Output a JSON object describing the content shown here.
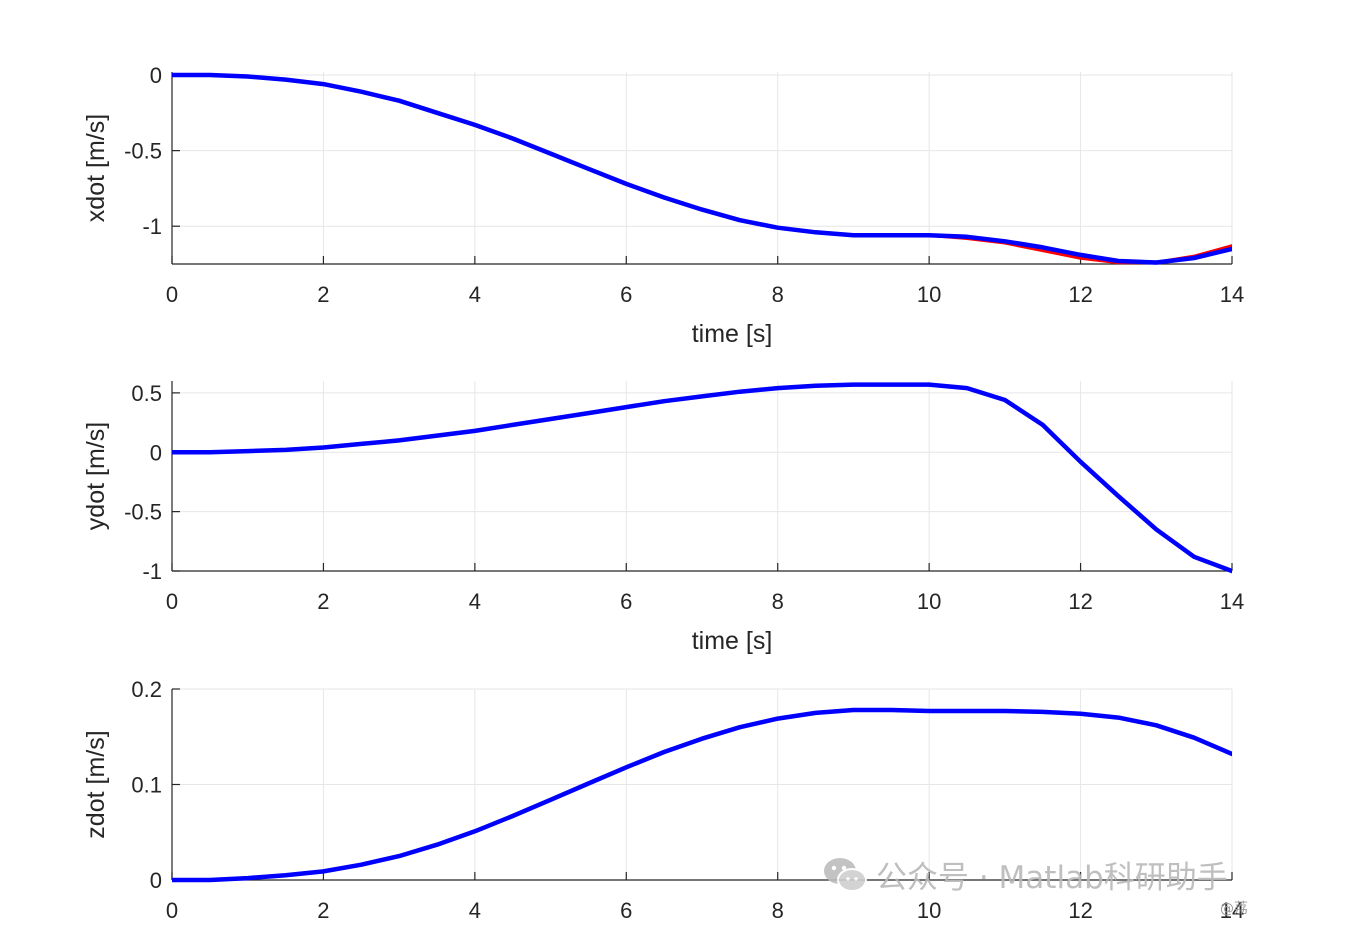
{
  "chart_data": [
    {
      "type": "line",
      "xlabel": "time [s]",
      "ylabel": "xdot [m/s]",
      "xlim": [
        0,
        14
      ],
      "ylim": [
        -1.25,
        0.02
      ],
      "xticks": [
        "0",
        "2",
        "4",
        "6",
        "8",
        "10",
        "12",
        "14"
      ],
      "yticks": [
        "0",
        "-0.5",
        "-1"
      ],
      "ytick_values": [
        0,
        -0.5,
        -1
      ],
      "show_xlabel": true,
      "grid": true,
      "x": [
        0,
        0.5,
        1,
        1.5,
        2,
        2.5,
        3,
        3.5,
        4,
        4.5,
        5,
        5.5,
        6,
        6.5,
        7,
        7.5,
        8,
        8.5,
        9,
        9.5,
        10,
        10.5,
        11,
        11.5,
        12,
        12.5,
        13,
        13.5,
        14
      ],
      "series": [
        {
          "color": "#ff0000",
          "values": [
            0,
            0,
            -0.01,
            -0.03,
            -0.06,
            -0.11,
            -0.17,
            -0.25,
            -0.33,
            -0.42,
            -0.52,
            -0.62,
            -0.72,
            -0.81,
            -0.89,
            -0.96,
            -1.01,
            -1.04,
            -1.06,
            -1.06,
            -1.06,
            -1.08,
            -1.11,
            -1.16,
            -1.21,
            -1.24,
            -1.24,
            -1.2,
            -1.13
          ]
        },
        {
          "color": "#0000ff",
          "values": [
            0,
            0,
            -0.01,
            -0.03,
            -0.06,
            -0.11,
            -0.17,
            -0.25,
            -0.33,
            -0.42,
            -0.52,
            -0.62,
            -0.72,
            -0.81,
            -0.89,
            -0.96,
            -1.01,
            -1.04,
            -1.06,
            -1.06,
            -1.06,
            -1.07,
            -1.1,
            -1.14,
            -1.19,
            -1.23,
            -1.24,
            -1.21,
            -1.15
          ]
        }
      ]
    },
    {
      "type": "line",
      "xlabel": "time [s]",
      "ylabel": "ydot [m/s]",
      "xlim": [
        0,
        14
      ],
      "ylim": [
        -1,
        0.6
      ],
      "xticks": [
        "0",
        "2",
        "4",
        "6",
        "8",
        "10",
        "12",
        "14"
      ],
      "yticks": [
        "0.5",
        "0",
        "-0.5",
        "-1"
      ],
      "ytick_values": [
        0.5,
        0,
        -0.5,
        -1
      ],
      "show_xlabel": true,
      "grid": true,
      "x": [
        0,
        0.5,
        1,
        1.5,
        2,
        2.5,
        3,
        3.5,
        4,
        4.5,
        5,
        5.5,
        6,
        6.5,
        7,
        7.5,
        8,
        8.5,
        9,
        9.5,
        10,
        10.5,
        11,
        11.5,
        12,
        12.5,
        13,
        13.5,
        14
      ],
      "series": [
        {
          "color": "#ff0000",
          "values": [
            0,
            0,
            0.01,
            0.02,
            0.04,
            0.07,
            0.1,
            0.14,
            0.18,
            0.23,
            0.28,
            0.33,
            0.38,
            0.43,
            0.47,
            0.51,
            0.54,
            0.56,
            0.57,
            0.57,
            0.57,
            0.54,
            0.44,
            0.23,
            -0.08,
            -0.37,
            -0.65,
            -0.88,
            -1.0
          ]
        },
        {
          "color": "#0000ff",
          "values": [
            0,
            0,
            0.01,
            0.02,
            0.04,
            0.07,
            0.1,
            0.14,
            0.18,
            0.23,
            0.28,
            0.33,
            0.38,
            0.43,
            0.47,
            0.51,
            0.54,
            0.56,
            0.57,
            0.57,
            0.57,
            0.54,
            0.44,
            0.23,
            -0.08,
            -0.37,
            -0.65,
            -0.88,
            -1.0
          ]
        }
      ]
    },
    {
      "type": "line",
      "xlabel": "",
      "ylabel": "zdot [m/s]",
      "xlim": [
        0,
        14
      ],
      "ylim": [
        0,
        0.2
      ],
      "xticks": [
        "0",
        "2",
        "4",
        "6",
        "8",
        "10",
        "12",
        "14"
      ],
      "yticks": [
        "0.2",
        "0.1",
        "0"
      ],
      "ytick_values": [
        0.2,
        0.1,
        0
      ],
      "show_xlabel": false,
      "grid": true,
      "x": [
        0,
        0.5,
        1,
        1.5,
        2,
        2.5,
        3,
        3.5,
        4,
        4.5,
        5,
        5.5,
        6,
        6.5,
        7,
        7.5,
        8,
        8.5,
        9,
        9.5,
        10,
        10.5,
        11,
        11.5,
        12,
        12.5,
        13,
        13.5,
        14
      ],
      "series": [
        {
          "color": "#ff0000",
          "values": [
            0,
            0,
            0.002,
            0.005,
            0.009,
            0.016,
            0.025,
            0.037,
            0.051,
            0.067,
            0.084,
            0.101,
            0.118,
            0.134,
            0.148,
            0.16,
            0.169,
            0.175,
            0.178,
            0.178,
            0.177,
            0.177,
            0.177,
            0.176,
            0.174,
            0.17,
            0.162,
            0.149,
            0.132
          ]
        },
        {
          "color": "#0000ff",
          "values": [
            0,
            0,
            0.002,
            0.005,
            0.009,
            0.016,
            0.025,
            0.037,
            0.051,
            0.067,
            0.084,
            0.101,
            0.118,
            0.134,
            0.148,
            0.16,
            0.169,
            0.175,
            0.178,
            0.178,
            0.177,
            0.177,
            0.177,
            0.176,
            0.174,
            0.17,
            0.162,
            0.149,
            0.132
          ]
        }
      ]
    }
  ],
  "watermark": {
    "icon": "wechat-icon",
    "text": "公众号 · Matlab科研助手"
  },
  "corner_mark": "@荔"
}
